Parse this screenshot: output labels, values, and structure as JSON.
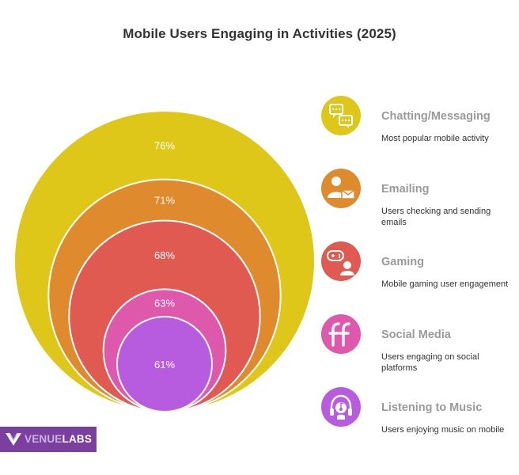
{
  "title": "Mobile Users Engaging in Activities (2025)",
  "chart_data": {
    "type": "nested-circles",
    "title": "Mobile Users Engaging in Activities (2025)",
    "categories": [
      "Chatting/Messaging",
      "Emailing",
      "Gaming",
      "Social Media",
      "Listening to Music"
    ],
    "values": [
      76,
      71,
      68,
      63,
      61
    ],
    "value_labels": [
      "76%",
      "71%",
      "68%",
      "63%",
      "61%"
    ],
    "unit": "%",
    "colors": [
      "#dfc71a",
      "#e08a2e",
      "#e05a52",
      "#de58ab",
      "#b85cdf"
    ],
    "descriptions": [
      "Most popular mobile activity",
      "Users checking and sending emails",
      "Mobile gaming user engagement",
      "Users engaging on social platforms",
      "Users enjoying music on mobile"
    ],
    "icons": [
      "chat-bubbles-icon",
      "email-user-icon",
      "gamepad-user-icon",
      "social-media-ff-icon",
      "music-headphones-icon"
    ],
    "legend_position": "right"
  },
  "brand": {
    "part1": "VENUE",
    "part2": "LABS",
    "logo_icon": "venuelabs-v-logo-icon",
    "background_color": "#7b3fa0"
  }
}
